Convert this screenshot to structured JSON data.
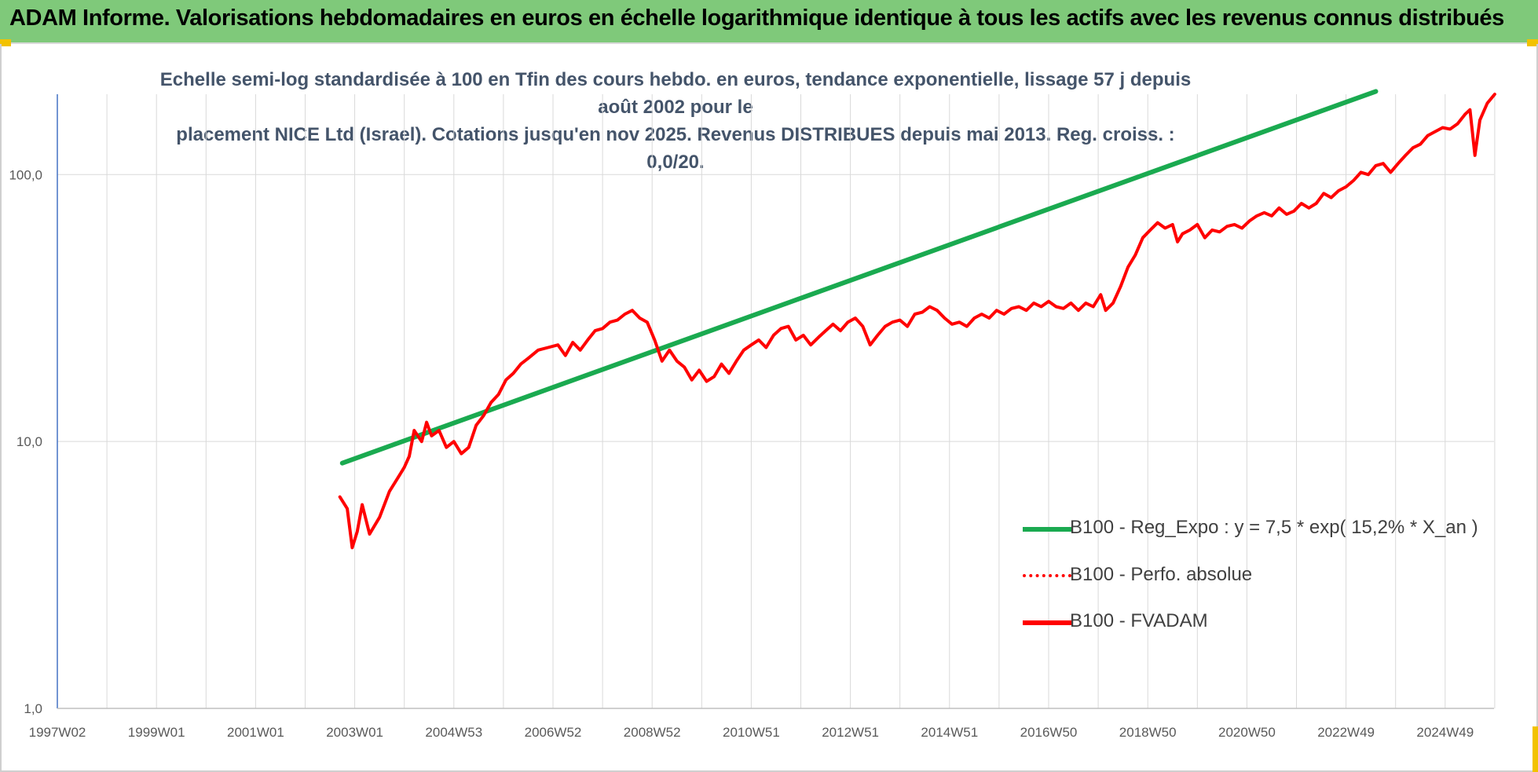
{
  "header": {
    "title": "ADAM Informe. Valorisations hebdomadaires en euros en échelle logarithmique identique à tous les actifs avec les revenus connus distribués"
  },
  "chart_data": {
    "type": "line",
    "subtitle_line1": "Echelle semi-log standardisée à 100 en Tfin des cours hebdo. en euros, tendance exponentielle, lissage 57 j depuis août 2002 pour le",
    "subtitle_line2": "placement NICE Ltd (Israel). Cotations jusqu'en nov 2025. Revenus DISTRIBUES depuis mai 2013. Reg. croiss. : 0,0/20.",
    "y_scale": "log",
    "ylim": [
      1,
      200
    ],
    "y_ticks": [
      1,
      10,
      100
    ],
    "y_tick_labels": [
      "1,0",
      "10,0",
      "100,0"
    ],
    "x_tick_labels": [
      "1997W02",
      "1999W01",
      "2001W01",
      "2003W01",
      "2004W53",
      "2006W52",
      "2008W52",
      "2010W51",
      "2012W51",
      "2014W51",
      "2016W50",
      "2018W50",
      "2020W50",
      "2022W49",
      "2024W49"
    ],
    "grid": true,
    "legend_position": "right",
    "series": [
      {
        "name": "B100 - Reg_Expo : y = 7,5 * exp( 15,2% * X_an )",
        "color": "#1aaa50",
        "style": "solid",
        "points": [
          [
            2002.75,
            8.3
          ],
          [
            2023.6,
            205
          ]
        ]
      },
      {
        "name": "B100 - Perfo. absolue",
        "color": "#ff0000",
        "style": "dotted",
        "points": []
      },
      {
        "name": "B100 - FVADAM",
        "color": "#ff0000",
        "style": "solid",
        "points": [
          [
            2002.7,
            6.2
          ],
          [
            2002.85,
            5.6
          ],
          [
            2002.95,
            4.0
          ],
          [
            2003.05,
            4.6
          ],
          [
            2003.15,
            5.8
          ],
          [
            2003.3,
            4.5
          ],
          [
            2003.5,
            5.2
          ],
          [
            2003.7,
            6.5
          ],
          [
            2003.85,
            7.2
          ],
          [
            2004.0,
            8.0
          ],
          [
            2004.1,
            8.8
          ],
          [
            2004.2,
            11.0
          ],
          [
            2004.35,
            10.0
          ],
          [
            2004.45,
            11.8
          ],
          [
            2004.55,
            10.5
          ],
          [
            2004.7,
            11.0
          ],
          [
            2004.85,
            9.5
          ],
          [
            2005.0,
            10.0
          ],
          [
            2005.15,
            9.0
          ],
          [
            2005.3,
            9.5
          ],
          [
            2005.45,
            11.5
          ],
          [
            2005.6,
            12.5
          ],
          [
            2005.75,
            14.0
          ],
          [
            2005.9,
            15.0
          ],
          [
            2006.05,
            17.0
          ],
          [
            2006.2,
            18.0
          ],
          [
            2006.35,
            19.5
          ],
          [
            2006.5,
            20.5
          ],
          [
            2006.7,
            22.0
          ],
          [
            2006.9,
            22.5
          ],
          [
            2007.1,
            23.0
          ],
          [
            2007.25,
            21.0
          ],
          [
            2007.4,
            23.5
          ],
          [
            2007.55,
            22.0
          ],
          [
            2007.7,
            24.0
          ],
          [
            2007.85,
            26.0
          ],
          [
            2008.0,
            26.5
          ],
          [
            2008.15,
            28.0
          ],
          [
            2008.3,
            28.5
          ],
          [
            2008.45,
            30.0
          ],
          [
            2008.6,
            31.0
          ],
          [
            2008.75,
            29.0
          ],
          [
            2008.9,
            28.0
          ],
          [
            2009.05,
            24.0
          ],
          [
            2009.2,
            20.0
          ],
          [
            2009.35,
            22.0
          ],
          [
            2009.5,
            20.0
          ],
          [
            2009.65,
            19.0
          ],
          [
            2009.8,
            17.0
          ],
          [
            2009.95,
            18.5
          ],
          [
            2010.1,
            16.8
          ],
          [
            2010.25,
            17.5
          ],
          [
            2010.4,
            19.5
          ],
          [
            2010.55,
            18.0
          ],
          [
            2010.7,
            20.0
          ],
          [
            2010.85,
            22.0
          ],
          [
            2011.0,
            23.0
          ],
          [
            2011.15,
            24.0
          ],
          [
            2011.3,
            22.5
          ],
          [
            2011.45,
            25.0
          ],
          [
            2011.6,
            26.5
          ],
          [
            2011.75,
            27.0
          ],
          [
            2011.9,
            24.0
          ],
          [
            2012.05,
            25.0
          ],
          [
            2012.2,
            23.0
          ],
          [
            2012.35,
            24.5
          ],
          [
            2012.5,
            26.0
          ],
          [
            2012.65,
            27.5
          ],
          [
            2012.8,
            26.0
          ],
          [
            2012.95,
            28.0
          ],
          [
            2013.1,
            29.0
          ],
          [
            2013.25,
            27.0
          ],
          [
            2013.4,
            23.0
          ],
          [
            2013.55,
            25.0
          ],
          [
            2013.7,
            27.0
          ],
          [
            2013.85,
            28.0
          ],
          [
            2014.0,
            28.5
          ],
          [
            2014.15,
            27.0
          ],
          [
            2014.3,
            30.0
          ],
          [
            2014.45,
            30.5
          ],
          [
            2014.6,
            32.0
          ],
          [
            2014.75,
            31.0
          ],
          [
            2014.9,
            29.0
          ],
          [
            2015.05,
            27.5
          ],
          [
            2015.2,
            28.0
          ],
          [
            2015.35,
            27.0
          ],
          [
            2015.5,
            29.0
          ],
          [
            2015.65,
            30.0
          ],
          [
            2015.8,
            29.0
          ],
          [
            2015.95,
            31.0
          ],
          [
            2016.1,
            30.0
          ],
          [
            2016.25,
            31.5
          ],
          [
            2016.4,
            32.0
          ],
          [
            2016.55,
            31.0
          ],
          [
            2016.7,
            33.0
          ],
          [
            2016.85,
            32.0
          ],
          [
            2017.0,
            33.5
          ],
          [
            2017.15,
            32.0
          ],
          [
            2017.3,
            31.5
          ],
          [
            2017.45,
            33.0
          ],
          [
            2017.6,
            31.0
          ],
          [
            2017.75,
            33.0
          ],
          [
            2017.9,
            32.0
          ],
          [
            2018.05,
            35.5
          ],
          [
            2018.15,
            31.0
          ],
          [
            2018.3,
            33.0
          ],
          [
            2018.45,
            38.0
          ],
          [
            2018.6,
            45.0
          ],
          [
            2018.75,
            50.0
          ],
          [
            2018.9,
            58.0
          ],
          [
            2019.05,
            62.0
          ],
          [
            2019.2,
            66.0
          ],
          [
            2019.35,
            63.0
          ],
          [
            2019.5,
            65.0
          ],
          [
            2019.6,
            56.0
          ],
          [
            2019.7,
            60.0
          ],
          [
            2019.85,
            62.0
          ],
          [
            2020.0,
            65.0
          ],
          [
            2020.15,
            58.0
          ],
          [
            2020.3,
            62.0
          ],
          [
            2020.45,
            61.0
          ],
          [
            2020.6,
            64.0
          ],
          [
            2020.75,
            65.0
          ],
          [
            2020.9,
            63.0
          ],
          [
            2021.05,
            67.0
          ],
          [
            2021.2,
            70.0
          ],
          [
            2021.35,
            72.0
          ],
          [
            2021.5,
            70.0
          ],
          [
            2021.65,
            75.0
          ],
          [
            2021.8,
            71.0
          ],
          [
            2021.95,
            73.0
          ],
          [
            2022.1,
            78.0
          ],
          [
            2022.25,
            75.0
          ],
          [
            2022.4,
            78.0
          ],
          [
            2022.55,
            85.0
          ],
          [
            2022.7,
            82.0
          ],
          [
            2022.85,
            87.0
          ],
          [
            2023.0,
            90.0
          ],
          [
            2023.15,
            95.0
          ],
          [
            2023.3,
            102.0
          ],
          [
            2023.45,
            100.0
          ],
          [
            2023.6,
            108.0
          ],
          [
            2023.75,
            110.0
          ],
          [
            2023.9,
            102.0
          ],
          [
            2024.05,
            110.0
          ],
          [
            2024.2,
            118.0
          ],
          [
            2024.35,
            126.0
          ],
          [
            2024.5,
            130.0
          ],
          [
            2024.65,
            140.0
          ],
          [
            2024.8,
            145.0
          ],
          [
            2024.95,
            150.0
          ],
          [
            2025.1,
            148.0
          ],
          [
            2025.25,
            155.0
          ],
          [
            2025.4,
            168.0
          ],
          [
            2025.5,
            175.0
          ],
          [
            2025.6,
            118.0
          ],
          [
            2025.7,
            160.0
          ],
          [
            2025.85,
            185.0
          ],
          [
            2026.0,
            200.0
          ]
        ]
      }
    ]
  }
}
